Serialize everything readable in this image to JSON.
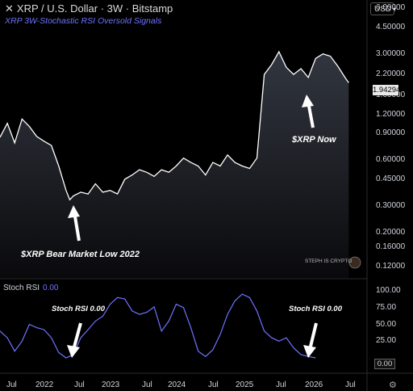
{
  "header": {
    "title": "XRP / U.S. Dollar · 3W · Bitstamp",
    "subtitle": "XRP 3W-Stochastic RSI Oversold Signals",
    "currency": "USD"
  },
  "price_axis": {
    "ticks": [
      "6.00000",
      "4.50000",
      "3.00000",
      "2.20000",
      "1.60000",
      "1.20000",
      "0.90000",
      "0.60000",
      "0.45000",
      "0.30000",
      "0.20000",
      "0.16000",
      "0.12000"
    ],
    "current_price": "1.94294"
  },
  "time_axis": {
    "ticks": [
      "Jul",
      "2022",
      "Jul",
      "2023",
      "Jul",
      "2024",
      "Jul",
      "2025",
      "Jul",
      "2026",
      "Jul"
    ]
  },
  "annotations": {
    "bear_low": "$XRP Bear Market Low 2022",
    "now": "$XRP Now",
    "stoch_left": "Stoch RSI 0.00",
    "stoch_right": "Stoch RSI 0.00"
  },
  "watermark": "STEPH IS CRYPTO",
  "stoch_panel": {
    "label": "Stoch RSI",
    "value": "0.00",
    "ticks": [
      "100.00",
      "75.00",
      "50.00",
      "25.00"
    ],
    "current": "0.00"
  },
  "colors": {
    "background": "#000000",
    "price_line": "#ffffff",
    "rsi_line": "#6f73ff",
    "subtitle": "#6f73ff"
  },
  "chart_data": [
    {
      "type": "area",
      "title": "XRP / U.S. Dollar · 3W · Bitstamp",
      "y_scale": "log",
      "ylim": [
        0.12,
        6.0
      ],
      "x_range": [
        "2021-07",
        "2026-07"
      ],
      "series": [
        {
          "values": [
            [
              0.0,
              0.85
            ],
            [
              0.02,
              1.05
            ],
            [
              0.04,
              0.78
            ],
            [
              0.06,
              1.12
            ],
            [
              0.08,
              1.0
            ],
            [
              0.1,
              0.86
            ],
            [
              0.12,
              0.8
            ],
            [
              0.14,
              0.75
            ],
            [
              0.16,
              0.55
            ],
            [
              0.18,
              0.38
            ],
            [
              0.19,
              0.33
            ],
            [
              0.2,
              0.35
            ],
            [
              0.22,
              0.37
            ],
            [
              0.24,
              0.36
            ],
            [
              0.26,
              0.42
            ],
            [
              0.28,
              0.37
            ],
            [
              0.3,
              0.38
            ],
            [
              0.32,
              0.36
            ],
            [
              0.34,
              0.45
            ],
            [
              0.36,
              0.48
            ],
            [
              0.38,
              0.52
            ],
            [
              0.4,
              0.5
            ],
            [
              0.42,
              0.47
            ],
            [
              0.44,
              0.52
            ],
            [
              0.46,
              0.5
            ],
            [
              0.48,
              0.55
            ],
            [
              0.5,
              0.62
            ],
            [
              0.52,
              0.58
            ],
            [
              0.54,
              0.55
            ],
            [
              0.56,
              0.48
            ],
            [
              0.58,
              0.58
            ],
            [
              0.6,
              0.55
            ],
            [
              0.62,
              0.65
            ],
            [
              0.64,
              0.58
            ],
            [
              0.66,
              0.55
            ],
            [
              0.68,
              0.53
            ],
            [
              0.7,
              0.62
            ],
            [
              0.72,
              2.2
            ],
            [
              0.74,
              2.55
            ],
            [
              0.76,
              3.1
            ],
            [
              0.78,
              2.45
            ],
            [
              0.8,
              2.2
            ],
            [
              0.82,
              2.4
            ],
            [
              0.84,
              2.1
            ],
            [
              0.86,
              2.8
            ],
            [
              0.88,
              3.0
            ],
            [
              0.9,
              2.9
            ],
            [
              0.92,
              2.5
            ],
            [
              0.94,
              2.1
            ],
            [
              0.95,
              1.94
            ]
          ]
        }
      ]
    },
    {
      "type": "line",
      "title": "Stoch RSI",
      "ylim": [
        0,
        100
      ],
      "x_range": [
        "2021-07",
        "2026-07"
      ],
      "series": [
        {
          "values": [
            [
              0.0,
              40
            ],
            [
              0.02,
              30
            ],
            [
              0.04,
              10
            ],
            [
              0.06,
              25
            ],
            [
              0.08,
              50
            ],
            [
              0.1,
              45
            ],
            [
              0.12,
              42
            ],
            [
              0.14,
              30
            ],
            [
              0.16,
              8
            ],
            [
              0.18,
              0
            ],
            [
              0.2,
              5
            ],
            [
              0.22,
              30
            ],
            [
              0.24,
              42
            ],
            [
              0.26,
              55
            ],
            [
              0.28,
              62
            ],
            [
              0.3,
              80
            ],
            [
              0.32,
              90
            ],
            [
              0.34,
              88
            ],
            [
              0.36,
              70
            ],
            [
              0.38,
              65
            ],
            [
              0.4,
              68
            ],
            [
              0.42,
              76
            ],
            [
              0.44,
              40
            ],
            [
              0.46,
              55
            ],
            [
              0.48,
              80
            ],
            [
              0.5,
              75
            ],
            [
              0.52,
              45
            ],
            [
              0.54,
              10
            ],
            [
              0.56,
              2
            ],
            [
              0.58,
              12
            ],
            [
              0.6,
              35
            ],
            [
              0.62,
              65
            ],
            [
              0.64,
              85
            ],
            [
              0.66,
              95
            ],
            [
              0.68,
              90
            ],
            [
              0.7,
              70
            ],
            [
              0.72,
              40
            ],
            [
              0.74,
              30
            ],
            [
              0.76,
              25
            ],
            [
              0.78,
              30
            ],
            [
              0.8,
              15
            ],
            [
              0.82,
              5
            ],
            [
              0.84,
              2
            ],
            [
              0.86,
              0
            ]
          ]
        }
      ]
    }
  ]
}
